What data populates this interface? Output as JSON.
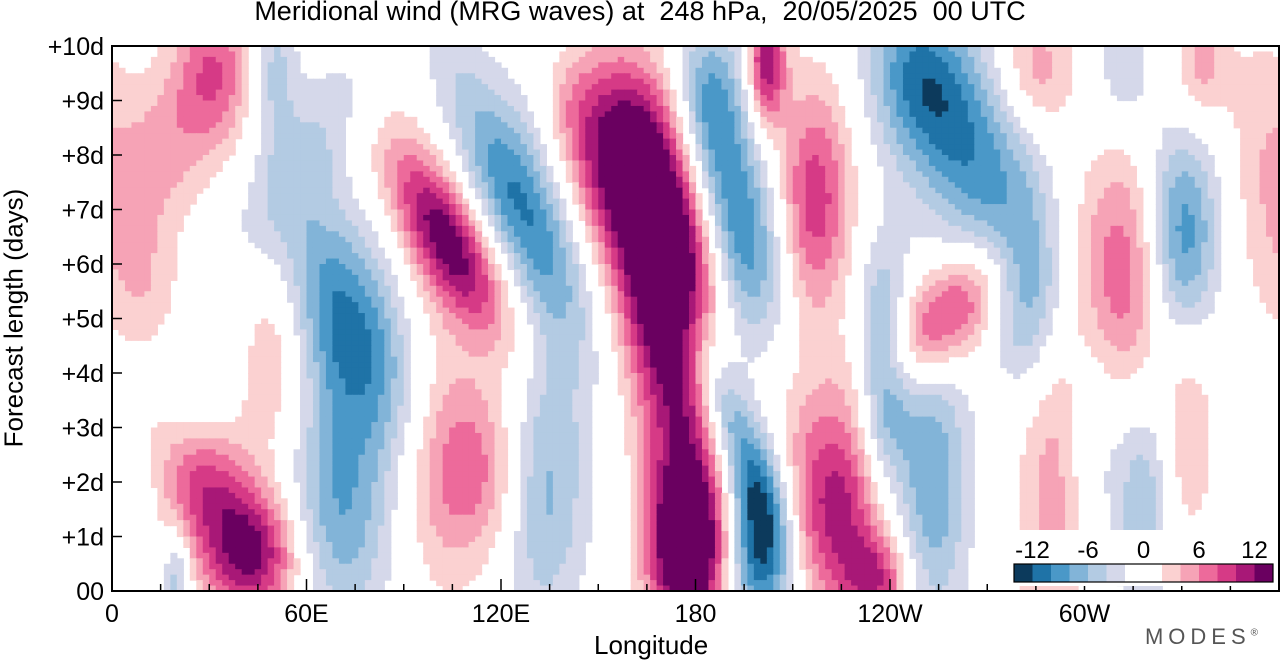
{
  "chart_data": {
    "type": "heatmap",
    "title": "Meridional wind (MRG waves) at  248 hPa,  20/05/2025  00 UTC",
    "xlabel": "Longitude",
    "ylabel": "Forecast length (days)",
    "x_ticks": [
      "0",
      "60E",
      "120E",
      "180",
      "120W",
      "60W"
    ],
    "x_tick_values": [
      0,
      60,
      120,
      180,
      240,
      300
    ],
    "y_ticks": [
      "00",
      "+1d",
      "+2d",
      "+3d",
      "+4d",
      "+5d",
      "+6d",
      "+7d",
      "+8d",
      "+9d",
      "+10d"
    ],
    "xlim": [
      0,
      360
    ],
    "ylim": [
      0,
      10
    ],
    "colorbar": {
      "labels": [
        "-12",
        "-6",
        "0",
        "6",
        "12"
      ],
      "levels": [
        -14,
        -12,
        -10,
        -8,
        -6,
        -4,
        -2,
        0,
        2,
        4,
        6,
        8,
        10,
        12,
        14
      ],
      "colors": [
        "#0c3a5c",
        "#1f73a7",
        "#4a98c8",
        "#82b4d8",
        "#b3cbe3",
        "#d5d8ea",
        "#ffffff",
        "#ffffff",
        "#fbd1d1",
        "#f6a3b6",
        "#ed6a9b",
        "#d63a86",
        "#a81877",
        "#6a0060"
      ]
    },
    "features": [
      {
        "lon": 20,
        "day": 0.3,
        "amp": -6,
        "lw": 3,
        "dw": 0.6,
        "tilt": 0
      },
      {
        "lon": 18,
        "day": 2.8,
        "amp": -3,
        "lw": 10,
        "dw": 1.5,
        "tilt": 10
      },
      {
        "lon": 43,
        "day": 0.6,
        "amp": 11,
        "lw": 11,
        "dw": 0.8,
        "tilt": 0
      },
      {
        "lon": 27,
        "day": 2.0,
        "amp": 9,
        "lw": 12,
        "dw": 1.0,
        "tilt": -6
      },
      {
        "lon": 10,
        "day": 5.5,
        "amp": 3,
        "lw": 8,
        "dw": 0.8,
        "tilt": 0
      },
      {
        "lon": 15,
        "day": 8.0,
        "amp": 5,
        "lw": 12,
        "dw": 1.6,
        "tilt": 6
      },
      {
        "lon": 32,
        "day": 9.5,
        "amp": 6,
        "lw": 8,
        "dw": 1.0,
        "tilt": 0
      },
      {
        "lon": 50,
        "day": 4.8,
        "amp": 6,
        "lw": 9,
        "dw": 1.6,
        "tilt": 0
      },
      {
        "lon": 50,
        "day": 9.6,
        "amp": -5,
        "lw": 5,
        "dw": 1.0,
        "tilt": 0
      },
      {
        "lon": 70,
        "day": 1.5,
        "amp": -8,
        "lw": 12,
        "dw": 1.5,
        "tilt": 0
      },
      {
        "lon": 72,
        "day": 4.9,
        "amp": -11,
        "lw": 14,
        "dw": 1.6,
        "tilt": -5
      },
      {
        "lon": 58,
        "day": 7.8,
        "amp": -4,
        "lw": 10,
        "dw": 1.6,
        "tilt": 8
      },
      {
        "lon": 100,
        "day": 4.2,
        "amp": 3,
        "lw": 10,
        "dw": 3.0,
        "tilt": 0
      },
      {
        "lon": 104,
        "day": 6.4,
        "amp": 12,
        "lw": 9,
        "dw": 1.2,
        "tilt": -8
      },
      {
        "lon": 112,
        "day": 2.2,
        "amp": 7,
        "lw": 14,
        "dw": 1.2,
        "tilt": 0
      },
      {
        "lon": 97,
        "day": 9.4,
        "amp": 3,
        "lw": 8,
        "dw": 1.0,
        "tilt": 0
      },
      {
        "lon": 124,
        "day": 7.3,
        "amp": -10,
        "lw": 10,
        "dw": 1.5,
        "tilt": -6
      },
      {
        "lon": 100,
        "day": 9.6,
        "amp": -4,
        "lw": 8,
        "dw": 1.0,
        "tilt": 0
      },
      {
        "lon": 132,
        "day": 1.8,
        "amp": -7,
        "lw": 9,
        "dw": 1.6,
        "tilt": 0
      },
      {
        "lon": 140,
        "day": 5.5,
        "amp": -3,
        "lw": 10,
        "dw": 3.0,
        "tilt": 0
      },
      {
        "lon": 142,
        "day": 9.0,
        "amp": 3,
        "lw": 6,
        "dw": 0.8,
        "tilt": 0
      },
      {
        "lon": 157,
        "day": 8.0,
        "amp": 15,
        "lw": 12,
        "dw": 1.3,
        "tilt": 0
      },
      {
        "lon": 170,
        "day": 6.0,
        "amp": 15,
        "lw": 10,
        "dw": 1.5,
        "tilt": 0
      },
      {
        "lon": 176,
        "day": 3.0,
        "amp": 10,
        "lw": 9,
        "dw": 2.6,
        "tilt": 0
      },
      {
        "lon": 178,
        "day": 0.8,
        "amp": 14,
        "lw": 8,
        "dw": 1.0,
        "tilt": 0
      },
      {
        "lon": 193,
        "day": 6.8,
        "amp": -11,
        "lw": 10,
        "dw": 1.8,
        "tilt": -4
      },
      {
        "lon": 185,
        "day": 9.1,
        "amp": -6,
        "lw": 7,
        "dw": 1.0,
        "tilt": 0
      },
      {
        "lon": 190,
        "day": 3.2,
        "amp": -8,
        "lw": 6,
        "dw": 1.6,
        "tilt": -6
      },
      {
        "lon": 200,
        "day": 0.9,
        "amp": -13,
        "lw": 7,
        "dw": 1.2,
        "tilt": 0
      },
      {
        "lon": 202,
        "day": 9.7,
        "amp": 12,
        "lw": 4,
        "dw": 0.8,
        "tilt": 0
      },
      {
        "lon": 208,
        "day": 4.2,
        "amp": 3,
        "lw": 8,
        "dw": 2.0,
        "tilt": 0
      },
      {
        "lon": 217,
        "day": 7.2,
        "amp": 9,
        "lw": 8,
        "dw": 1.5,
        "tilt": 0
      },
      {
        "lon": 224,
        "day": 1.6,
        "amp": 11,
        "lw": 11,
        "dw": 1.4,
        "tilt": 0
      },
      {
        "lon": 236,
        "day": 0.2,
        "amp": 8,
        "lw": 7,
        "dw": 0.6,
        "tilt": 0
      },
      {
        "lon": 238,
        "day": 4.0,
        "amp": -10,
        "lw": 6,
        "dw": 1.5,
        "tilt": 0
      },
      {
        "lon": 253,
        "day": 2.0,
        "amp": -8,
        "lw": 8,
        "dw": 1.8,
        "tilt": 0
      },
      {
        "lon": 256,
        "day": 5.0,
        "amp": 10,
        "lw": 12,
        "dw": 0.9,
        "tilt": 10
      },
      {
        "lon": 262,
        "day": 8.3,
        "amp": -10,
        "lw": 14,
        "dw": 1.6,
        "tilt": -5
      },
      {
        "lon": 248,
        "day": 9.5,
        "amp": -5,
        "lw": 10,
        "dw": 1.0,
        "tilt": 0
      },
      {
        "lon": 283,
        "day": 5.5,
        "amp": -8,
        "lw": 8,
        "dw": 1.3,
        "tilt": 0
      },
      {
        "lon": 290,
        "day": 2.0,
        "amp": 5,
        "lw": 8,
        "dw": 3.0,
        "tilt": 0
      },
      {
        "lon": 285,
        "day": 9.6,
        "amp": 5,
        "lw": 8,
        "dw": 0.8,
        "tilt": 0
      },
      {
        "lon": 303,
        "day": 3.0,
        "amp": -3,
        "lw": 6,
        "dw": 1.5,
        "tilt": 0
      },
      {
        "lon": 312,
        "day": 5.8,
        "amp": 8,
        "lw": 10,
        "dw": 1.6,
        "tilt": 0
      },
      {
        "lon": 318,
        "day": 1.5,
        "amp": -6,
        "lw": 6,
        "dw": 1.5,
        "tilt": 0
      },
      {
        "lon": 330,
        "day": 6.5,
        "amp": -10,
        "lw": 8,
        "dw": 1.4,
        "tilt": 0
      },
      {
        "lon": 332,
        "day": 3.0,
        "amp": 4,
        "lw": 6,
        "dw": 1.5,
        "tilt": 0
      },
      {
        "lon": 336,
        "day": 9.6,
        "amp": 5,
        "lw": 6,
        "dw": 0.8,
        "tilt": 0
      },
      {
        "lon": 312,
        "day": 9.6,
        "amp": -4,
        "lw": 6,
        "dw": 0.8,
        "tilt": 0
      },
      {
        "lon": 355,
        "day": 8.5,
        "amp": 3,
        "lw": 8,
        "dw": 1.5,
        "tilt": 0
      }
    ]
  },
  "logo": "MODES",
  "logo_mark": "®"
}
